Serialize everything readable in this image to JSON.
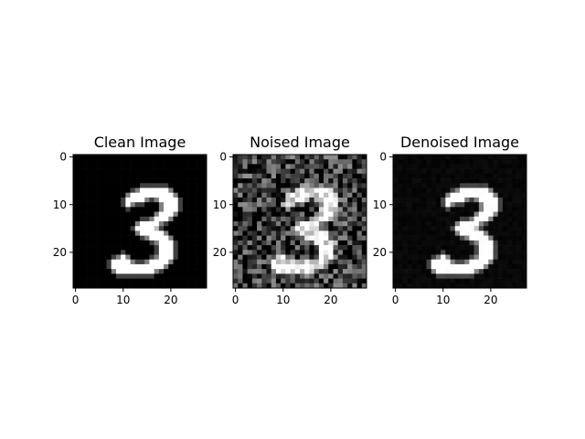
{
  "figure": {
    "background": "#ffffff",
    "colormap": "gray"
  },
  "chart_data": [
    {
      "type": "heatmap",
      "title": "Clean Image",
      "image_size": [
        28,
        28
      ],
      "digit": "3",
      "noise_level": 0.0,
      "background_level": 0.0,
      "xlim": [
        -0.5,
        27.5
      ],
      "ylim": [
        27.5,
        -0.5
      ],
      "xticks": [
        0,
        10,
        20
      ],
      "yticks": [
        0,
        10,
        20
      ],
      "xlabel": "",
      "ylabel": ""
    },
    {
      "type": "heatmap",
      "title": "Noised Image",
      "image_size": [
        28,
        28
      ],
      "digit": "3",
      "noise_level": 0.35,
      "background_level": 0.22,
      "xlim": [
        -0.5,
        27.5
      ],
      "ylim": [
        27.5,
        -0.5
      ],
      "xticks": [
        0,
        10,
        20
      ],
      "yticks": [
        0,
        10,
        20
      ],
      "xlabel": "",
      "ylabel": ""
    },
    {
      "type": "heatmap",
      "title": "Denoised Image",
      "image_size": [
        28,
        28
      ],
      "digit": "3",
      "noise_level": 0.02,
      "background_level": 0.03,
      "xlim": [
        -0.5,
        27.5
      ],
      "ylim": [
        27.5,
        -0.5
      ],
      "xticks": [
        0,
        10,
        20
      ],
      "yticks": [
        0,
        10,
        20
      ],
      "xlabel": "",
      "ylabel": ""
    }
  ]
}
